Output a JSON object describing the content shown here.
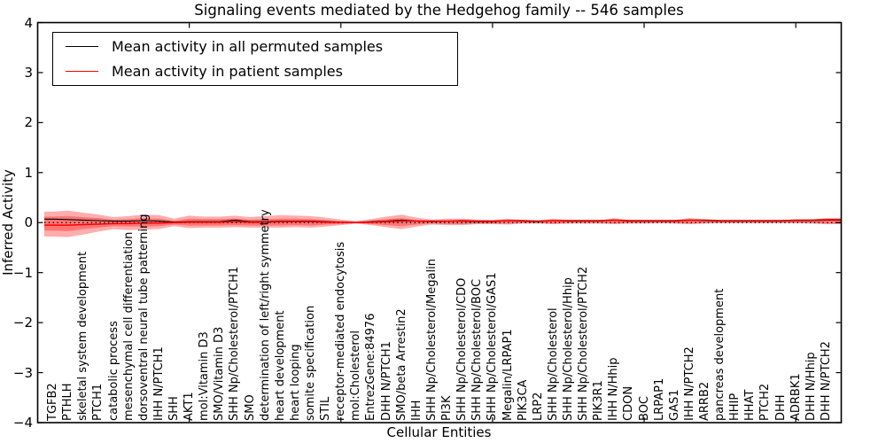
{
  "title": "Signaling events mediated by the Hedgehog family -- 546 samples",
  "axes": {
    "xlabel": "Cellular Entities",
    "ylabel": "Inferred Activity",
    "ytick_labels": [
      "4",
      "3",
      "2",
      "1",
      "0",
      "−1",
      "−2",
      "−3",
      "−4"
    ],
    "ytick_values": [
      4,
      3,
      2,
      1,
      0,
      -1,
      -2,
      -3,
      -4
    ],
    "xtick_values": [
      10,
      20,
      30,
      40,
      50
    ]
  },
  "legend": {
    "items": [
      {
        "label": "Mean activity in all permuted samples",
        "color": "#000000"
      },
      {
        "label": "Mean activity in patient samples",
        "color": "#ff0000"
      }
    ]
  },
  "colors": {
    "band_fill": "#ff0000",
    "band_opacity": 0.32,
    "permuted_line": "#000000",
    "patient_line": "#ff0000",
    "baseline": "#000000",
    "spine": "#000000"
  },
  "chart_data": {
    "type": "line",
    "title": "Signaling events mediated by the Hedgehog family -- 546 samples",
    "xlabel": "Cellular Entities",
    "ylabel": "Inferred Activity",
    "ylim": [
      -4,
      4
    ],
    "xlim": [
      0,
      53
    ],
    "baseline": 0,
    "legend_position": "upper left",
    "grid": false,
    "categories": [
      "TGFB2",
      "PTHLH",
      "skeletal system development",
      "PTCH1",
      "catabolic process",
      "mesenchymal cell differentiation",
      "dorsoventral neural tube patterning",
      "IHH N/PTCH1",
      "SHH",
      "AKT1",
      "mol:Vitamin D3",
      "SMO/Vitamin D3",
      "SHH Np/Cholesterol/PTCH1",
      "SMO",
      "determination of left/right symmetry",
      "heart development",
      "heart looping",
      "somite specification",
      "STIL",
      "receptor-mediated endocytosis",
      "mol:Cholesterol",
      "EntrezGene:84976",
      "DHH N/PTCH1",
      "SMO/beta Arrestin2",
      "IHH",
      "SHH Np/Cholesterol/Megalin",
      "PI3K",
      "SHH Np/Cholesterol/CDO",
      "SHH Np/Cholesterol/BOC",
      "SHH Np/Cholesterol/GAS1",
      "Megalin/LRPAP1",
      "PIK3CA",
      "LRP2",
      "SHH Np/Cholesterol",
      "SHH Np/Cholesterol/Hhip",
      "SHH Np/Cholesterol/PTCH2",
      "PIK3R1",
      "IHH N/Hhip",
      "CDON",
      "BOC",
      "LRPAP1",
      "GAS1",
      "IHH N/PTCH2",
      "ARRB2",
      "pancreas development",
      "HHIP",
      "HHAT",
      "PTCH2",
      "DHH",
      "ADRBK1",
      "DHH N/Hhip",
      "DHH N/PTCH2"
    ],
    "series": [
      {
        "name": "Mean activity in all permuted samples",
        "color": "#000000",
        "values": [
          0.07,
          0.06,
          0.05,
          0.04,
          0.03,
          0.03,
          0.04,
          0.03,
          0.01,
          0.02,
          0.02,
          0.02,
          0.05,
          0.02,
          0.02,
          0.03,
          0.03,
          0.03,
          0.02,
          0.01,
          0.0,
          0.02,
          0.03,
          0.05,
          0.03,
          0.02,
          0.03,
          0.03,
          0.02,
          0.02,
          0.04,
          0.03,
          0.02,
          0.04,
          0.03,
          0.03,
          0.03,
          0.05,
          0.03,
          0.03,
          0.03,
          0.03,
          0.05,
          0.04,
          0.03,
          0.03,
          0.03,
          0.03,
          0.03,
          0.04,
          0.04,
          0.05
        ]
      },
      {
        "name": "Mean activity in patient samples",
        "color": "#ff0000",
        "values": [
          -0.05,
          -0.05,
          -0.04,
          -0.03,
          -0.02,
          -0.02,
          -0.01,
          -0.01,
          0.0,
          0.01,
          0.01,
          0.01,
          0.02,
          0.01,
          0.01,
          0.02,
          0.02,
          0.02,
          0.01,
          0.01,
          0.0,
          0.01,
          0.02,
          0.03,
          0.03,
          0.03,
          0.03,
          0.04,
          0.03,
          0.03,
          0.04,
          0.04,
          0.03,
          0.04,
          0.04,
          0.04,
          0.04,
          0.05,
          0.04,
          0.04,
          0.04,
          0.04,
          0.05,
          0.05,
          0.04,
          0.04,
          0.04,
          0.04,
          0.04,
          0.05,
          0.05,
          0.06
        ]
      },
      {
        "name": "activity spread outer band",
        "type": "band",
        "color": "#ff0000",
        "upper": [
          0.22,
          0.24,
          0.2,
          0.16,
          0.11,
          0.13,
          0.16,
          0.15,
          0.08,
          0.14,
          0.12,
          0.12,
          0.14,
          0.11,
          0.13,
          0.15,
          0.14,
          0.13,
          0.1,
          0.06,
          0.03,
          0.07,
          0.12,
          0.16,
          0.1,
          0.06,
          0.08,
          0.08,
          0.06,
          0.05,
          0.08,
          0.05,
          0.04,
          0.08,
          0.05,
          0.04,
          0.04,
          0.09,
          0.05,
          0.04,
          0.04,
          0.05,
          0.09,
          0.06,
          0.04,
          0.04,
          0.04,
          0.04,
          0.04,
          0.05,
          0.06,
          0.09
        ],
        "lower": [
          -0.28,
          -0.29,
          -0.24,
          -0.18,
          -0.13,
          -0.15,
          -0.14,
          -0.13,
          -0.07,
          -0.11,
          -0.1,
          -0.1,
          -0.09,
          -0.1,
          -0.1,
          -0.1,
          -0.09,
          -0.1,
          -0.08,
          -0.05,
          -0.02,
          -0.05,
          -0.09,
          -0.13,
          -0.08,
          -0.04,
          -0.05,
          -0.05,
          -0.03,
          -0.03,
          -0.04,
          -0.02,
          -0.02,
          -0.03,
          -0.02,
          -0.02,
          -0.02,
          -0.03,
          -0.02,
          -0.02,
          -0.01,
          -0.02,
          -0.03,
          -0.02,
          -0.01,
          -0.01,
          -0.01,
          -0.01,
          -0.01,
          -0.01,
          -0.02,
          -0.03
        ]
      },
      {
        "name": "activity spread inner band",
        "type": "band",
        "color": "#ff0000",
        "upper": [
          0.12,
          0.13,
          0.11,
          0.09,
          0.06,
          0.07,
          0.09,
          0.08,
          0.04,
          0.08,
          0.07,
          0.07,
          0.08,
          0.06,
          0.07,
          0.08,
          0.08,
          0.07,
          0.05,
          0.03,
          0.02,
          0.04,
          0.07,
          0.09,
          0.05,
          0.03,
          0.04,
          0.04,
          0.03,
          0.03,
          0.05,
          0.03,
          0.02,
          0.05,
          0.03,
          0.02,
          0.02,
          0.05,
          0.03,
          0.02,
          0.02,
          0.03,
          0.05,
          0.03,
          0.02,
          0.02,
          0.02,
          0.02,
          0.02,
          0.03,
          0.04,
          0.06
        ],
        "lower": [
          -0.16,
          -0.17,
          -0.13,
          -0.1,
          -0.07,
          -0.08,
          -0.08,
          -0.07,
          -0.04,
          -0.06,
          -0.06,
          -0.06,
          -0.05,
          -0.06,
          -0.06,
          -0.06,
          -0.05,
          -0.06,
          -0.04,
          -0.03,
          -0.01,
          -0.03,
          -0.05,
          -0.07,
          -0.04,
          -0.02,
          -0.03,
          -0.03,
          -0.02,
          -0.02,
          -0.02,
          -0.01,
          -0.01,
          -0.02,
          -0.01,
          -0.01,
          -0.01,
          -0.02,
          -0.01,
          -0.01,
          -0.01,
          -0.01,
          -0.02,
          -0.01,
          -0.01,
          -0.01,
          -0.01,
          -0.01,
          -0.01,
          -0.01,
          -0.01,
          -0.02
        ]
      }
    ]
  }
}
